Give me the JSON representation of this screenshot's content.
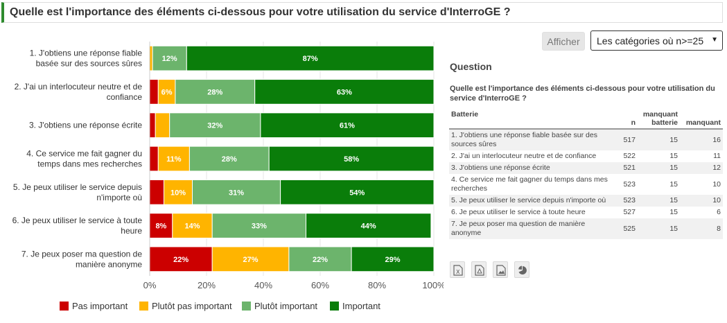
{
  "header": {
    "title": "Quelle est l'importance des éléments ci-dessous pour votre utilisation du service d'InterroGE ?"
  },
  "controls": {
    "afficher_label": "Afficher",
    "filter_value": "Les catégories où n>=25"
  },
  "side": {
    "title": "Question",
    "question": "Quelle est l'importance des éléments ci-dessous pour votre utilisation du service d'InterroGE ?",
    "columns": [
      "Batterie",
      "n",
      "manquant batterie",
      "manquant"
    ],
    "rows": [
      {
        "label": "1. J'obtiens une réponse fiable basée sur des sources sûres",
        "n": "517",
        "mb": "15",
        "m": "16"
      },
      {
        "label": "2. J'ai un interlocuteur neutre et de confiance",
        "n": "522",
        "mb": "15",
        "m": "11"
      },
      {
        "label": "3. J'obtiens une réponse écrite",
        "n": "521",
        "mb": "15",
        "m": "12"
      },
      {
        "label": "4. Ce service me fait gagner du temps dans mes recherches",
        "n": "523",
        "mb": "15",
        "m": "10"
      },
      {
        "label": "5. Je peux utiliser le service depuis n'importe où",
        "n": "523",
        "mb": "15",
        "m": "10"
      },
      {
        "label": "6. Je peux utiliser le service à toute heure",
        "n": "527",
        "mb": "15",
        "m": "6"
      },
      {
        "label": "7. Je peux poser ma question de manière anonyme",
        "n": "525",
        "mb": "15",
        "m": "8"
      }
    ],
    "export_icons": [
      "excel-icon",
      "pdf-icon",
      "image-icon",
      "pie-chart-icon"
    ]
  },
  "chart_data": {
    "type": "bar",
    "orientation": "horizontal-stacked-100",
    "categories": [
      [
        "1. J'obtiens une réponse fiable",
        "basée sur des sources sûres"
      ],
      [
        "2. J'ai un interlocuteur neutre et de",
        "confiance"
      ],
      [
        "3. J'obtiens une réponse écrite"
      ],
      [
        "4. Ce service me fait gagner du",
        "temps dans mes recherches"
      ],
      [
        "5. Je peux utiliser le service depuis",
        "n'importe où"
      ],
      [
        "6. Je peux utiliser le service à toute",
        "heure"
      ],
      [
        "7. Je peux poser ma question de",
        "manière anonyme"
      ]
    ],
    "series": [
      {
        "name": "Pas important",
        "color": "#cc0000",
        "values": [
          0,
          3,
          2,
          3,
          5,
          8,
          22
        ],
        "labels": [
          "",
          "",
          "",
          "",
          "",
          "8%",
          "22%"
        ]
      },
      {
        "name": "Plutôt pas important",
        "color": "#ffb400",
        "values": [
          1,
          6,
          5,
          11,
          10,
          14,
          27
        ],
        "labels": [
          "",
          "6%",
          "",
          "11%",
          "10%",
          "14%",
          "27%"
        ]
      },
      {
        "name": "Plutôt important",
        "color": "#6cb46c",
        "values": [
          12,
          28,
          32,
          28,
          31,
          33,
          22
        ],
        "labels": [
          "12%",
          "28%",
          "32%",
          "28%",
          "31%",
          "33%",
          "22%"
        ]
      },
      {
        "name": "Important",
        "color": "#0a7d0a",
        "values": [
          87,
          63,
          61,
          58,
          54,
          44,
          29
        ],
        "labels": [
          "87%",
          "63%",
          "61%",
          "58%",
          "54%",
          "44%",
          "29%"
        ]
      }
    ],
    "xlim": [
      0,
      100
    ],
    "x_ticks": [
      "0%",
      "20%",
      "40%",
      "60%",
      "80%",
      "100%"
    ],
    "legend_position": "bottom"
  }
}
